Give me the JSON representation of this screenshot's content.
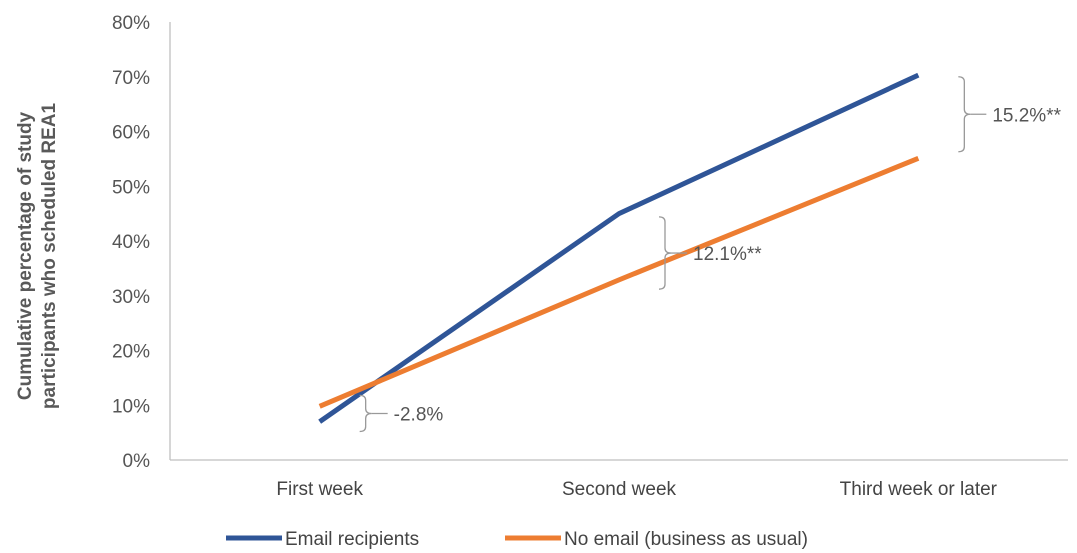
{
  "chart_data": {
    "type": "line",
    "categories": [
      "First week",
      "Second week",
      "Third week or later"
    ],
    "series": [
      {
        "name": "Email recipients",
        "values": [
          7,
          45,
          70.3
        ],
        "color": "#2F5597"
      },
      {
        "name": "No email (business as usual)",
        "values": [
          9.8,
          32.9,
          55.1
        ],
        "color": "#ED7D31"
      }
    ],
    "ylabel_lines": [
      "Cumulative percentage of study",
      "participants who scheduled REA1"
    ],
    "ylim": [
      0,
      80
    ],
    "yticks": [
      0,
      10,
      20,
      30,
      40,
      50,
      60,
      70,
      80
    ],
    "ytick_labels": [
      "0%",
      "10%",
      "20%",
      "30%",
      "40%",
      "50%",
      "60%",
      "70%",
      "80%"
    ],
    "annotations": [
      {
        "category_index": 0,
        "low": 5.2,
        "high": 11.8,
        "label": "-2.8%"
      },
      {
        "category_index": 1,
        "low": 31.2,
        "high": 44.4,
        "label": "12.1%**"
      },
      {
        "category_index": 2,
        "low": 56.3,
        "high": 70.0,
        "label": "15.2%**"
      }
    ],
    "grid": false,
    "legend_position": "bottom"
  }
}
